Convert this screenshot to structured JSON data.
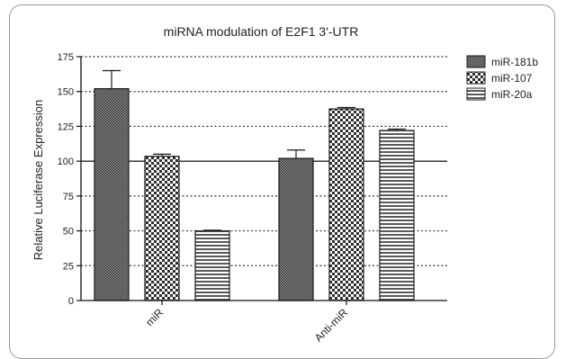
{
  "chart_data": {
    "type": "bar",
    "title": "miRNA modulation of E2F1 3'-UTR",
    "xlabel": "",
    "ylabel": "Relative Luciferase Expression",
    "categories": [
      "miR",
      "Anti-miR"
    ],
    "series": [
      {
        "name": "miR-181b",
        "values": [
          152,
          102
        ],
        "errors": [
          13,
          6
        ],
        "pattern": "fine-dots",
        "color": "#555555"
      },
      {
        "name": "miR-107",
        "values": [
          103.5,
          137.5
        ],
        "errors": [
          1.5,
          1
        ],
        "pattern": "checker",
        "color": "#555555"
      },
      {
        "name": "miR-20a",
        "values": [
          50,
          122
        ],
        "errors": [
          0.5,
          1
        ],
        "pattern": "horizontal-stripes",
        "color": "#555555"
      }
    ],
    "ylim": [
      0,
      175
    ],
    "yticks": [
      0,
      25,
      50,
      75,
      100,
      125,
      150,
      175
    ],
    "grid": "dotted horizontal",
    "reference_line": 100,
    "legend_position": "right"
  }
}
